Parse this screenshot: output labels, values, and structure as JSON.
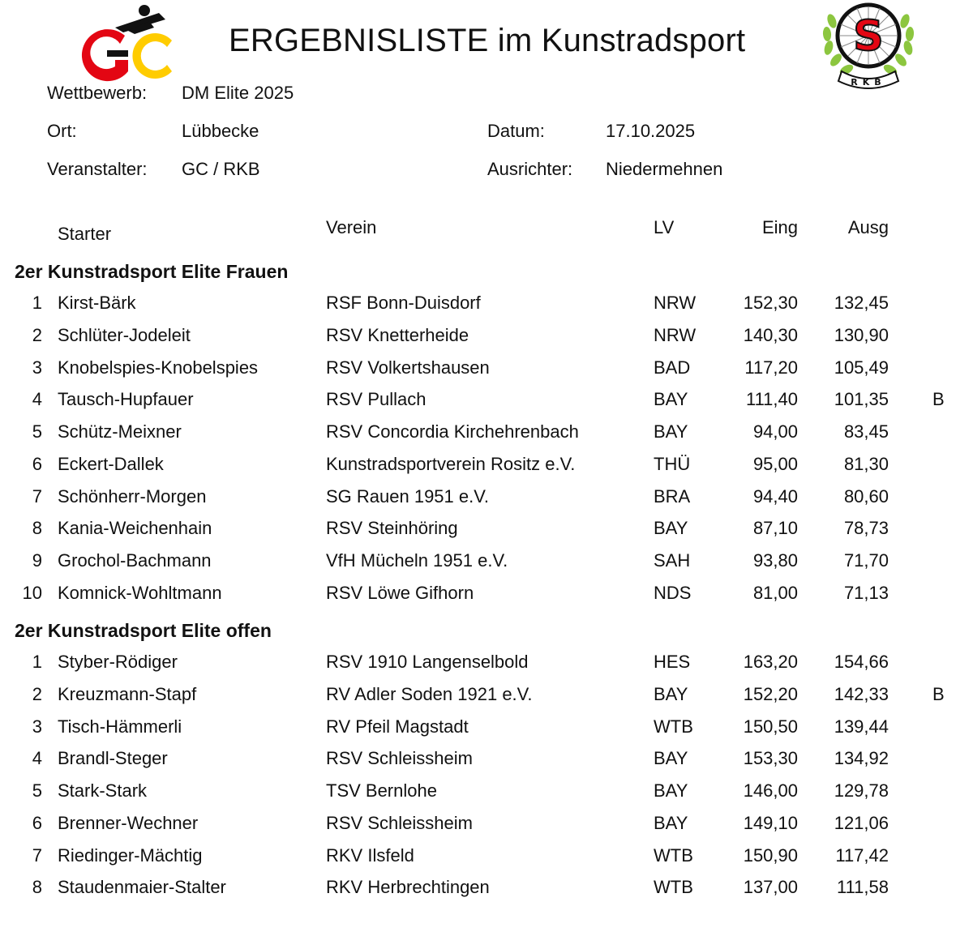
{
  "title": "ERGEBNISLISTE im Kunstradsport",
  "logos": {
    "left": {
      "text": "GC",
      "colors": [
        "#111111",
        "#e30613",
        "#ffcc00"
      ]
    },
    "right": {
      "letter": "S",
      "text": "RKB",
      "colors": [
        "#e30613",
        "#8cc63f",
        "#111111"
      ]
    }
  },
  "meta": {
    "wettbewerb_label": "Wettbewerb:",
    "wettbewerb_value": "DM Elite 2025",
    "ort_label": "Ort:",
    "ort_value": "Lübbecke",
    "datum_label": "Datum:",
    "datum_value": "17.10.2025",
    "veranstalter_label": "Veranstalter:",
    "veranstalter_value": "GC / RKB",
    "ausrichter_label": "Ausrichter:",
    "ausrichter_value": "Niedermehnen"
  },
  "columns": {
    "starter": "Starter",
    "verein": "Verein",
    "lv": "LV",
    "eing": "Eing",
    "ausg": "Ausg"
  },
  "sections": [
    {
      "title": "2er Kunstradsport Elite Frauen",
      "rows": [
        {
          "rank": "1",
          "name": "Kirst-Bärk",
          "club": "RSF Bonn-Duisdorf",
          "lv": "NRW",
          "eing": "152,30",
          "ausg": "132,45",
          "note": ""
        },
        {
          "rank": "2",
          "name": "Schlüter-Jodeleit",
          "club": "RSV Knetterheide",
          "lv": "NRW",
          "eing": "140,30",
          "ausg": "130,90",
          "note": ""
        },
        {
          "rank": "3",
          "name": "Knobelspies-Knobelspies",
          "club": "RSV Volkertshausen",
          "lv": "BAD",
          "eing": "117,20",
          "ausg": "105,49",
          "note": ""
        },
        {
          "rank": "4",
          "name": "Tausch-Hupfauer",
          "club": "RSV Pullach",
          "lv": "BAY",
          "eing": "111,40",
          "ausg": "101,35",
          "note": "B"
        },
        {
          "rank": "5",
          "name": "Schütz-Meixner",
          "club": "RSV Concordia Kirchehrenbach",
          "lv": "BAY",
          "eing": "94,00",
          "ausg": "83,45",
          "note": ""
        },
        {
          "rank": "6",
          "name": "Eckert-Dallek",
          "club": "Kunstradsportverein Rositz e.V.",
          "lv": "THÜ",
          "eing": "95,00",
          "ausg": "81,30",
          "note": ""
        },
        {
          "rank": "7",
          "name": "Schönherr-Morgen",
          "club": "SG Rauen 1951 e.V.",
          "lv": "BRA",
          "eing": "94,40",
          "ausg": "80,60",
          "note": ""
        },
        {
          "rank": "8",
          "name": "Kania-Weichenhain",
          "club": "RSV Steinhöring",
          "lv": "BAY",
          "eing": "87,10",
          "ausg": "78,73",
          "note": ""
        },
        {
          "rank": "9",
          "name": "Grochol-Bachmann",
          "club": "VfH Mücheln 1951 e.V.",
          "lv": "SAH",
          "eing": "93,80",
          "ausg": "71,70",
          "note": ""
        },
        {
          "rank": "10",
          "name": "Komnick-Wohltmann",
          "club": "RSV Löwe Gifhorn",
          "lv": "NDS",
          "eing": "81,00",
          "ausg": "71,13",
          "note": ""
        }
      ]
    },
    {
      "title": "2er Kunstradsport Elite offen",
      "rows": [
        {
          "rank": "1",
          "name": "Styber-Rödiger",
          "club": "RSV 1910 Langenselbold",
          "lv": "HES",
          "eing": "163,20",
          "ausg": "154,66",
          "note": ""
        },
        {
          "rank": "2",
          "name": "Kreuzmann-Stapf",
          "club": "RV Adler Soden 1921 e.V.",
          "lv": "BAY",
          "eing": "152,20",
          "ausg": "142,33",
          "note": "B"
        },
        {
          "rank": "3",
          "name": "Tisch-Hämmerli",
          "club": "RV Pfeil Magstadt",
          "lv": "WTB",
          "eing": "150,50",
          "ausg": "139,44",
          "note": ""
        },
        {
          "rank": "4",
          "name": "Brandl-Steger",
          "club": "RSV Schleissheim",
          "lv": "BAY",
          "eing": "153,30",
          "ausg": "134,92",
          "note": ""
        },
        {
          "rank": "5",
          "name": "Stark-Stark",
          "club": "TSV Bernlohe",
          "lv": "BAY",
          "eing": "146,00",
          "ausg": "129,78",
          "note": ""
        },
        {
          "rank": "6",
          "name": "Brenner-Wechner",
          "club": "RSV Schleissheim",
          "lv": "BAY",
          "eing": "149,10",
          "ausg": "121,06",
          "note": ""
        },
        {
          "rank": "7",
          "name": "Riedinger-Mächtig",
          "club": "RKV Ilsfeld",
          "lv": "WTB",
          "eing": "150,90",
          "ausg": "117,42",
          "note": ""
        },
        {
          "rank": "8",
          "name": "Staudenmaier-Stalter",
          "club": "RKV Herbrechtingen",
          "lv": "WTB",
          "eing": "137,00",
          "ausg": "111,58",
          "note": ""
        }
      ]
    }
  ]
}
